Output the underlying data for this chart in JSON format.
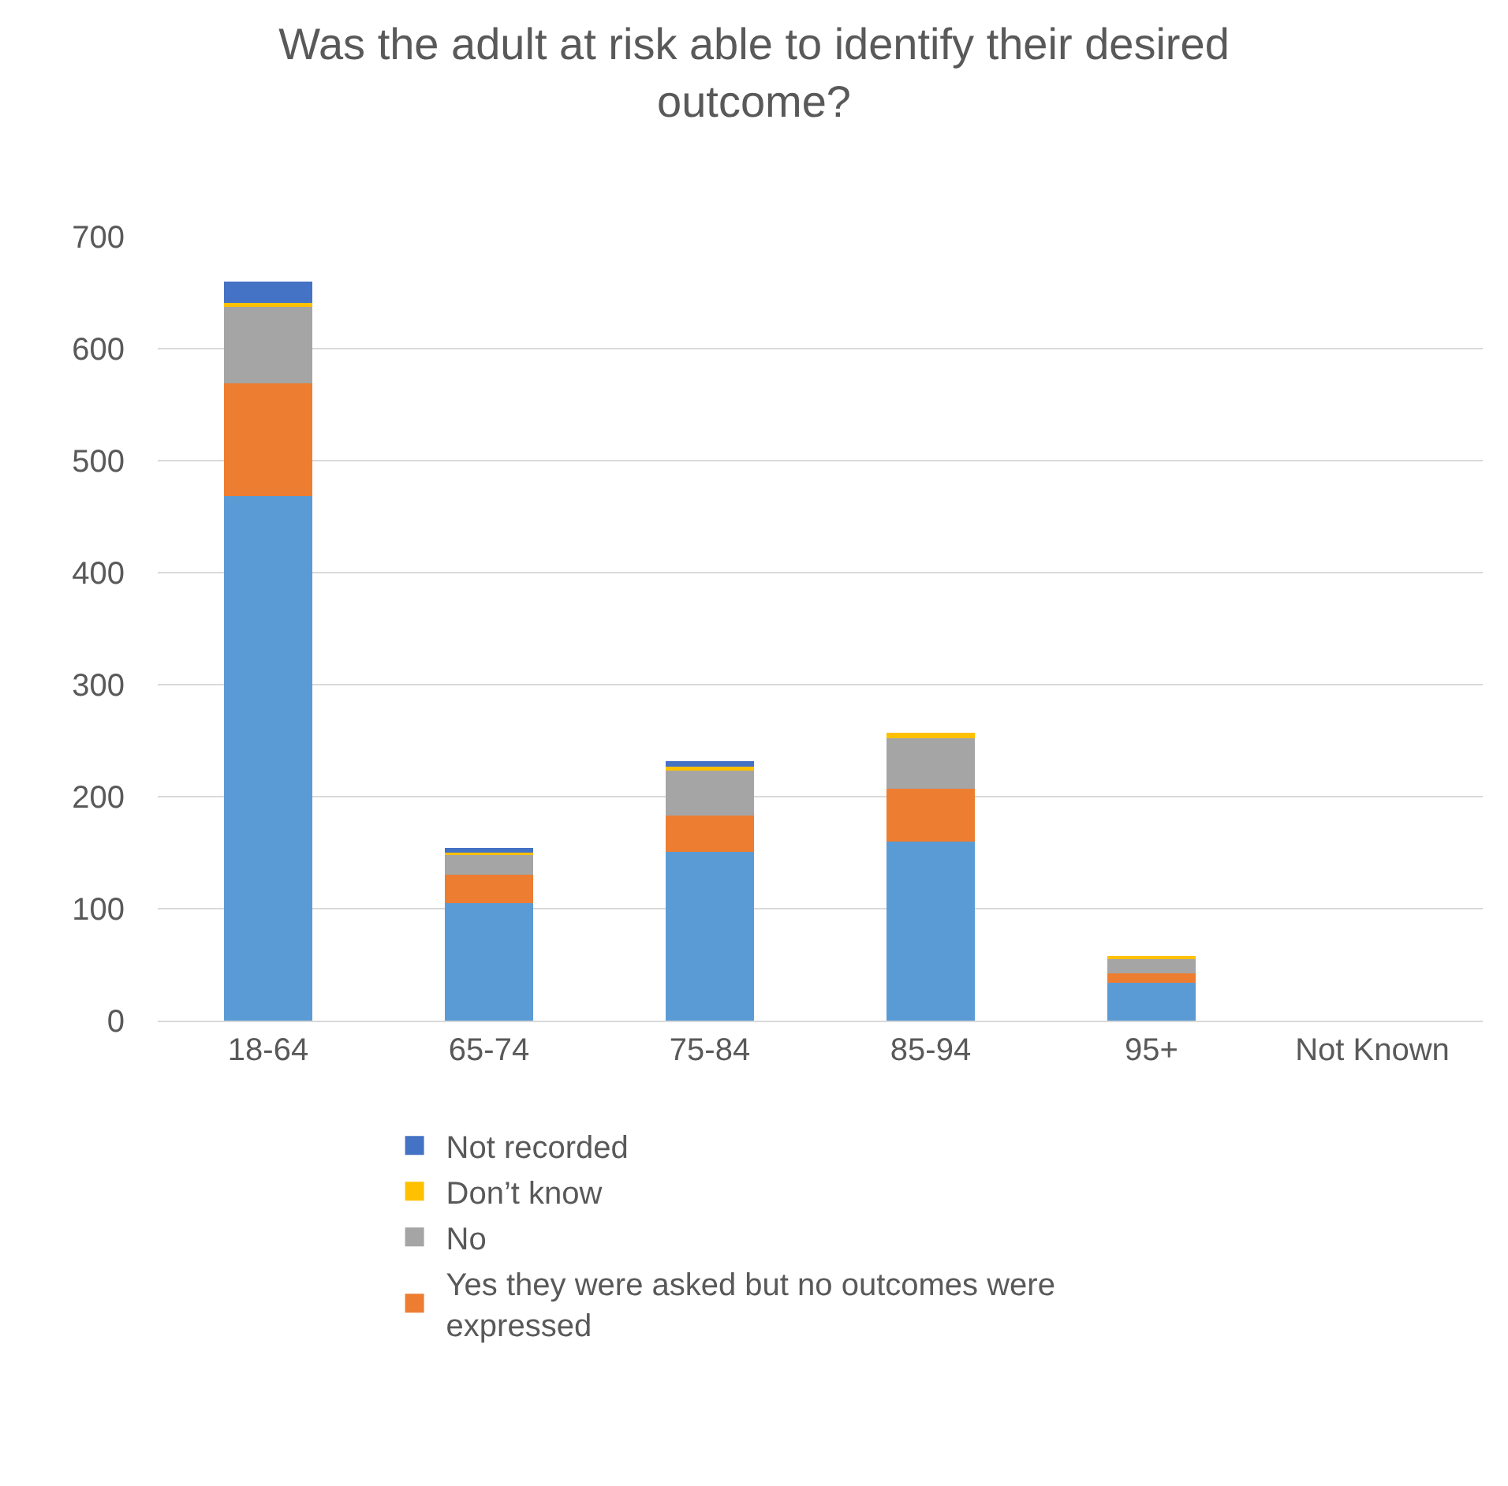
{
  "chart_data": {
    "type": "bar",
    "title": "Was the adult at risk able to identify their desired outcome?",
    "categories": [
      "18-64",
      "65-74",
      "75-84",
      "85-94",
      "95+",
      "Not Known"
    ],
    "stacked": true,
    "series": [
      {
        "color": "#5b9bd5",
        "values": [
          468,
          105,
          151,
          160,
          34,
          0
        ]
      },
      {
        "name": "Yes they were asked but no outcomes were expressed",
        "color": "#ed7d31",
        "values": [
          101,
          25,
          32,
          47,
          8,
          0
        ]
      },
      {
        "name": "No",
        "color": "#a5a5a5",
        "values": [
          68,
          18,
          40,
          45,
          13,
          0
        ]
      },
      {
        "name": "Don’t know",
        "color": "#ffc000",
        "values": [
          4,
          2,
          4,
          5,
          3,
          0
        ]
      },
      {
        "name": "Not recorded",
        "color": "#4472c4",
        "values": [
          19,
          4,
          5,
          0,
          0,
          0
        ]
      }
    ],
    "ylim": [
      0,
      700
    ],
    "yticks": [
      0,
      100,
      200,
      300,
      400,
      500,
      600,
      700
    ],
    "grid": "y",
    "legend": "bottom"
  }
}
